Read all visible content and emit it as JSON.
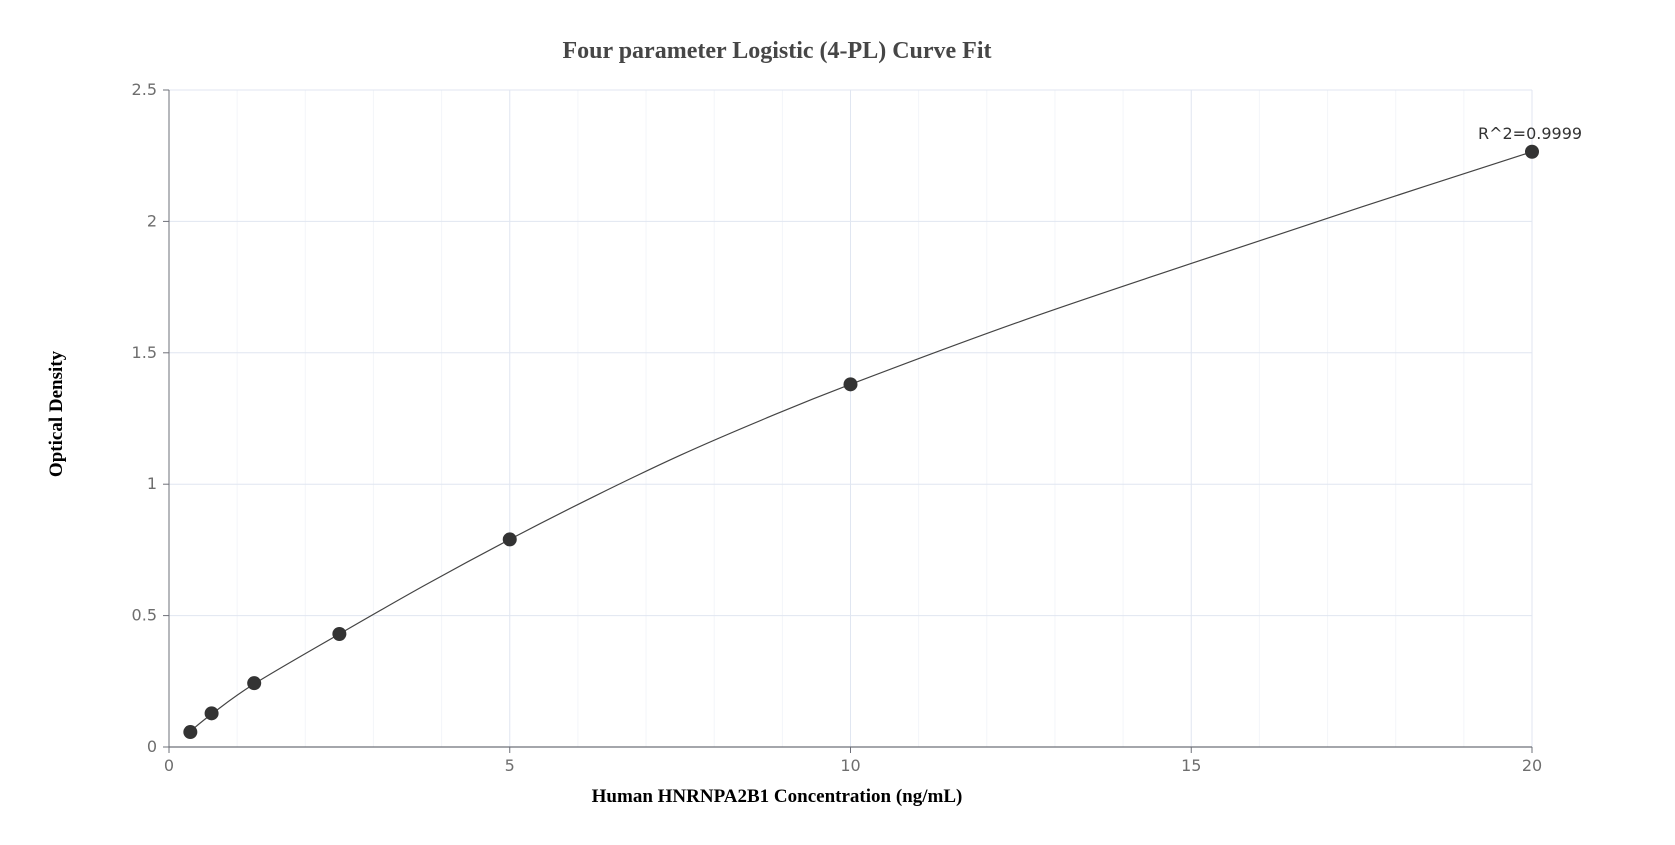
{
  "chart_data": {
    "type": "scatter",
    "title": "Four parameter Logistic (4-PL) Curve Fit",
    "xlabel": "Human HNRNPA2B1 Concentration (ng/mL)",
    "ylabel": "Optical Density",
    "xlim": [
      0,
      20
    ],
    "ylim": [
      0,
      2.5
    ],
    "x_ticks": [
      "0",
      "5",
      "10",
      "15",
      "20"
    ],
    "y_ticks": [
      "0",
      "0.5",
      "1",
      "1.5",
      "2",
      "2.5"
    ],
    "grid": true,
    "series": [
      {
        "points": [
          {
            "x": 0.313,
            "y": 0.057
          },
          {
            "x": 0.625,
            "y": 0.128
          },
          {
            "x": 1.25,
            "y": 0.243
          },
          {
            "x": 2.5,
            "y": 0.43
          },
          {
            "x": 5,
            "y": 0.79
          },
          {
            "x": 10,
            "y": 1.38
          },
          {
            "x": 20,
            "y": 2.265
          }
        ]
      }
    ],
    "fit_curve": {
      "x": [
        0.313,
        0.625,
        1.25,
        2.5,
        3.75,
        5,
        6.25,
        7.5,
        8.75,
        10,
        12.5,
        15,
        17.5,
        20
      ],
      "y": [
        0.06,
        0.125,
        0.24,
        0.43,
        0.615,
        0.79,
        0.955,
        1.11,
        1.25,
        1.38,
        1.62,
        1.84,
        2.055,
        2.265
      ]
    },
    "annotations": [
      {
        "text": "R^2=0.9999",
        "x": 20,
        "y": 2.265
      }
    ],
    "colors": {
      "point": "#333333",
      "curve": "#444444",
      "grid_major": "#e0e6f1",
      "grid_minor": "#f3f5f9",
      "axis": "#6e7079"
    }
  }
}
